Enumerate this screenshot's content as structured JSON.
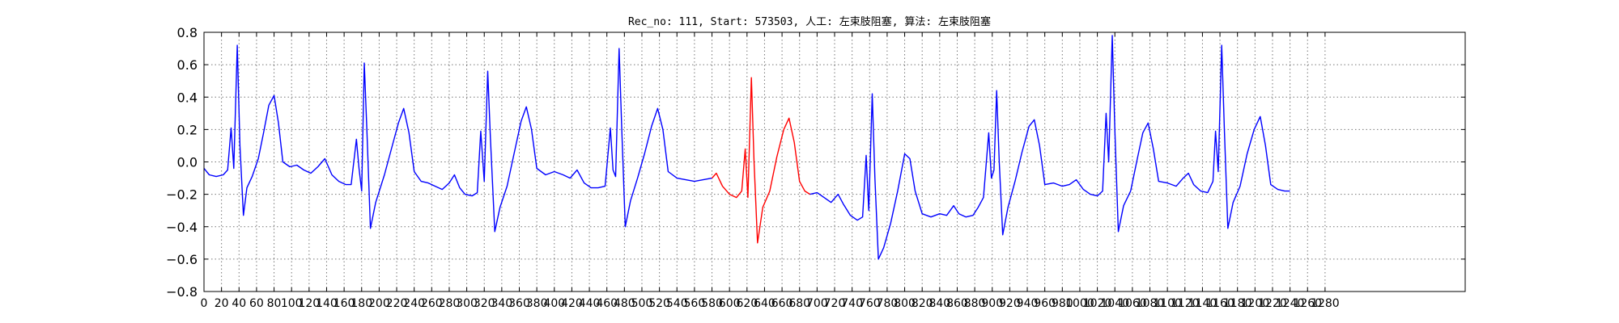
{
  "chart_data": {
    "type": "line",
    "title": "Rec_no: 111, Start: 573503, 人工: 左束肢阻塞, 算法: 左束肢阻塞",
    "xlabel": "",
    "ylabel": "",
    "xlim": [
      0,
      1440
    ],
    "ylim": [
      -0.8,
      0.8
    ],
    "grid": true,
    "yticks": [
      "0.8",
      "0.6",
      "0.4",
      "0.2",
      "0.0",
      "−0.2",
      "−0.4",
      "−0.6",
      "−0.8"
    ],
    "xtick_values": [
      0,
      20,
      40,
      60,
      80,
      100,
      120,
      140,
      160,
      180,
      200,
      220,
      240,
      260,
      280,
      300,
      320,
      340,
      360,
      380,
      400,
      420,
      440,
      460,
      480,
      500,
      520,
      540,
      560,
      580,
      600,
      620,
      640,
      660,
      680,
      700,
      720,
      740,
      760,
      780,
      800,
      820,
      840,
      860,
      880,
      900,
      920,
      940,
      960,
      980,
      1000,
      1020,
      1040,
      1060,
      1080,
      1100,
      1120,
      1140,
      1160,
      1180,
      1200,
      1220,
      1240,
      1260,
      1280
    ],
    "series": [
      {
        "color": "#0000ff",
        "points": [
          [
            0,
            -0.04
          ],
          [
            6,
            -0.08
          ],
          [
            14,
            -0.09
          ],
          [
            22,
            -0.08
          ],
          [
            27,
            -0.05
          ],
          [
            31,
            0.21
          ],
          [
            34,
            -0.04
          ],
          [
            38,
            0.72
          ],
          [
            41,
            0.1
          ],
          [
            45,
            -0.33
          ],
          [
            49,
            -0.16
          ],
          [
            55,
            -0.09
          ],
          [
            62,
            0.02
          ],
          [
            68,
            0.18
          ],
          [
            74,
            0.35
          ],
          [
            80,
            0.41
          ],
          [
            85,
            0.24
          ],
          [
            90,
            0.0
          ],
          [
            98,
            -0.03
          ],
          [
            106,
            -0.02
          ],
          [
            114,
            -0.05
          ],
          [
            122,
            -0.07
          ],
          [
            130,
            -0.03
          ],
          [
            138,
            0.02
          ],
          [
            146,
            -0.08
          ],
          [
            154,
            -0.12
          ],
          [
            162,
            -0.14
          ],
          [
            168,
            -0.14
          ],
          [
            174,
            0.14
          ],
          [
            177,
            -0.04
          ],
          [
            180,
            -0.18
          ],
          [
            183,
            0.61
          ],
          [
            186,
            0.2
          ],
          [
            190,
            -0.41
          ],
          [
            196,
            -0.25
          ],
          [
            206,
            -0.08
          ],
          [
            214,
            0.08
          ],
          [
            222,
            0.24
          ],
          [
            228,
            0.33
          ],
          [
            234,
            0.18
          ],
          [
            240,
            -0.06
          ],
          [
            248,
            -0.12
          ],
          [
            256,
            -0.13
          ],
          [
            264,
            -0.15
          ],
          [
            272,
            -0.17
          ],
          [
            280,
            -0.13
          ],
          [
            286,
            -0.08
          ],
          [
            292,
            -0.16
          ],
          [
            298,
            -0.2
          ],
          [
            306,
            -0.21
          ],
          [
            312,
            -0.19
          ],
          [
            316,
            0.19
          ],
          [
            320,
            -0.12
          ],
          [
            324,
            0.56
          ],
          [
            327,
            0.15
          ],
          [
            332,
            -0.43
          ],
          [
            338,
            -0.28
          ],
          [
            346,
            -0.15
          ],
          [
            354,
            0.05
          ],
          [
            362,
            0.25
          ],
          [
            368,
            0.34
          ],
          [
            374,
            0.2
          ],
          [
            380,
            -0.04
          ],
          [
            390,
            -0.08
          ],
          [
            400,
            -0.06
          ],
          [
            410,
            -0.08
          ],
          [
            418,
            -0.1
          ],
          [
            426,
            -0.05
          ],
          [
            434,
            -0.13
          ],
          [
            442,
            -0.16
          ],
          [
            450,
            -0.16
          ],
          [
            458,
            -0.15
          ],
          [
            464,
            0.21
          ],
          [
            467,
            -0.05
          ],
          [
            470,
            -0.09
          ],
          [
            474,
            0.7
          ],
          [
            477,
            0.2
          ],
          [
            481,
            -0.4
          ],
          [
            487,
            -0.24
          ],
          [
            495,
            -0.1
          ],
          [
            503,
            0.05
          ],
          [
            511,
            0.22
          ],
          [
            518,
            0.33
          ],
          [
            524,
            0.2
          ],
          [
            530,
            -0.06
          ],
          [
            540,
            -0.1
          ],
          [
            550,
            -0.11
          ],
          [
            560,
            -0.12
          ],
          [
            570,
            -0.11
          ],
          [
            580,
            -0.1
          ]
        ]
      },
      {
        "color": "#ff0000",
        "points": [
          [
            580,
            -0.1
          ],
          [
            585,
            -0.07
          ],
          [
            592,
            -0.15
          ],
          [
            600,
            -0.2
          ],
          [
            608,
            -0.22
          ],
          [
            614,
            -0.18
          ],
          [
            618,
            0.08
          ],
          [
            621,
            -0.22
          ],
          [
            625,
            0.52
          ],
          [
            628,
            0.0
          ],
          [
            632,
            -0.5
          ],
          [
            638,
            -0.28
          ],
          [
            646,
            -0.18
          ],
          [
            654,
            0.03
          ],
          [
            662,
            0.2
          ],
          [
            668,
            0.27
          ],
          [
            674,
            0.12
          ],
          [
            680,
            -0.12
          ],
          [
            686,
            -0.18
          ],
          [
            692,
            -0.2
          ]
        ]
      },
      {
        "color": "#0000ff",
        "points": [
          [
            692,
            -0.2
          ],
          [
            700,
            -0.19
          ],
          [
            708,
            -0.22
          ],
          [
            716,
            -0.25
          ],
          [
            724,
            -0.2
          ],
          [
            730,
            -0.26
          ],
          [
            738,
            -0.33
          ],
          [
            746,
            -0.36
          ],
          [
            752,
            -0.34
          ],
          [
            756,
            0.04
          ],
          [
            759,
            -0.3
          ],
          [
            763,
            0.42
          ],
          [
            766,
            -0.1
          ],
          [
            770,
            -0.6
          ],
          [
            776,
            -0.53
          ],
          [
            784,
            -0.38
          ],
          [
            792,
            -0.18
          ],
          [
            800,
            0.05
          ],
          [
            806,
            0.02
          ],
          [
            812,
            -0.18
          ],
          [
            820,
            -0.32
          ],
          [
            830,
            -0.34
          ],
          [
            840,
            -0.32
          ],
          [
            848,
            -0.33
          ],
          [
            856,
            -0.27
          ],
          [
            862,
            -0.32
          ],
          [
            870,
            -0.34
          ],
          [
            878,
            -0.33
          ],
          [
            884,
            -0.28
          ],
          [
            890,
            -0.22
          ],
          [
            896,
            0.18
          ],
          [
            899,
            -0.1
          ],
          [
            902,
            -0.05
          ],
          [
            905,
            0.44
          ],
          [
            908,
            0.0
          ],
          [
            912,
            -0.45
          ],
          [
            918,
            -0.28
          ],
          [
            926,
            -0.12
          ],
          [
            934,
            0.06
          ],
          [
            942,
            0.22
          ],
          [
            948,
            0.26
          ],
          [
            954,
            0.1
          ],
          [
            960,
            -0.14
          ],
          [
            970,
            -0.13
          ],
          [
            980,
            -0.15
          ],
          [
            988,
            -0.14
          ],
          [
            996,
            -0.11
          ],
          [
            1004,
            -0.17
          ],
          [
            1012,
            -0.2
          ],
          [
            1020,
            -0.21
          ],
          [
            1026,
            -0.18
          ],
          [
            1030,
            0.3
          ],
          [
            1033,
            0.0
          ],
          [
            1037,
            0.78
          ],
          [
            1040,
            0.2
          ],
          [
            1044,
            -0.43
          ],
          [
            1050,
            -0.27
          ],
          [
            1058,
            -0.18
          ],
          [
            1066,
            0.03
          ],
          [
            1072,
            0.18
          ],
          [
            1078,
            0.24
          ],
          [
            1084,
            0.08
          ],
          [
            1090,
            -0.12
          ],
          [
            1100,
            -0.13
          ],
          [
            1110,
            -0.15
          ],
          [
            1118,
            -0.1
          ],
          [
            1124,
            -0.07
          ],
          [
            1130,
            -0.14
          ],
          [
            1138,
            -0.18
          ],
          [
            1146,
            -0.19
          ],
          [
            1152,
            -0.12
          ],
          [
            1155,
            0.19
          ],
          [
            1158,
            -0.06
          ],
          [
            1162,
            0.72
          ],
          [
            1165,
            0.2
          ],
          [
            1169,
            -0.41
          ],
          [
            1175,
            -0.25
          ],
          [
            1183,
            -0.15
          ],
          [
            1191,
            0.05
          ],
          [
            1199,
            0.2
          ],
          [
            1206,
            0.28
          ],
          [
            1212,
            0.1
          ],
          [
            1218,
            -0.14
          ],
          [
            1226,
            -0.17
          ],
          [
            1234,
            -0.18
          ],
          [
            1240,
            -0.18
          ]
        ]
      }
    ]
  }
}
